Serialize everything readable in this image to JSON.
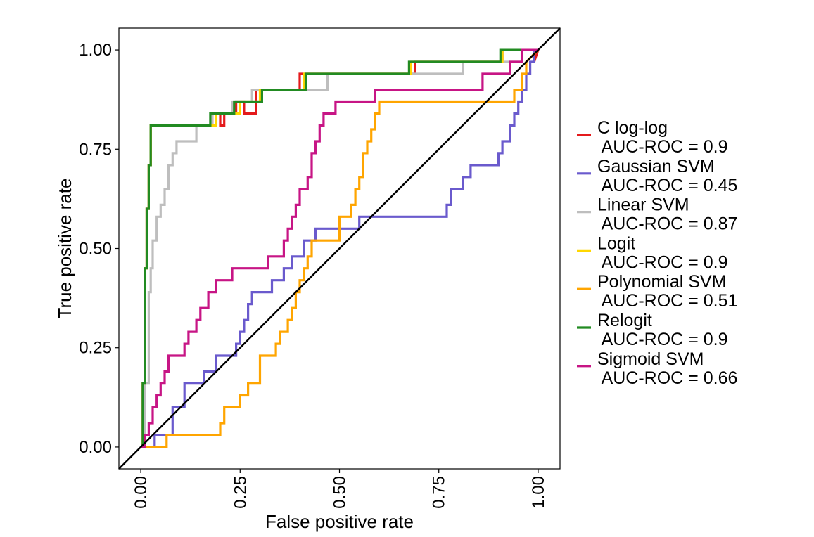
{
  "chart_data": {
    "type": "line",
    "xlabel": "False positive rate",
    "ylabel": "True positive rate",
    "xlim": [
      -0.055,
      1.055
    ],
    "ylim": [
      -0.055,
      1.055
    ],
    "x_ticks": [
      0,
      0.25,
      0.5,
      0.75,
      1
    ],
    "x_tick_labels": [
      "0.00",
      "0.25",
      "0.50",
      "0.75",
      "1.00"
    ],
    "y_ticks": [
      0,
      0.25,
      0.5,
      0.75,
      1
    ],
    "y_tick_labels": [
      "0.00",
      "0.25",
      "0.50",
      "0.75",
      "1.00"
    ],
    "x_tick_label_rotation": "vertical",
    "grid": false,
    "legend_position": "right",
    "reference_line": {
      "x": [
        -0.055,
        1.055
      ],
      "y": [
        -0.055,
        1.055
      ],
      "color": "#000000"
    },
    "series": [
      {
        "name": "C log-log",
        "auc_label": " AUC-ROC = 0.9",
        "color": "#E41A1C",
        "x": [
          0,
          0.005,
          0.005,
          0.01,
          0.01,
          0.015,
          0.015,
          0.02,
          0.02,
          0.025,
          0.025,
          0.18,
          0.18,
          0.2,
          0.2,
          0.21,
          0.21,
          0.24,
          0.24,
          0.26,
          0.26,
          0.29,
          0.29,
          0.4,
          0.4,
          0.69,
          0.69,
          0.91,
          0.91,
          0.99,
          0.99,
          1.0
        ],
        "y": [
          0,
          0,
          0.16,
          0.16,
          0.45,
          0.45,
          0.6,
          0.6,
          0.71,
          0.71,
          0.81,
          0.81,
          0.84,
          0.84,
          0.81,
          0.81,
          0.84,
          0.84,
          0.87,
          0.87,
          0.84,
          0.84,
          0.9,
          0.9,
          0.94,
          0.94,
          0.97,
          0.97,
          1.0,
          1.0,
          0.97,
          1.0
        ]
      },
      {
        "name": "Gaussian SVM",
        "auc_label": " AUC-ROC = 0.45",
        "color": "#6A5ACD",
        "x": [
          0,
          0.035,
          0.035,
          0.08,
          0.08,
          0.11,
          0.11,
          0.16,
          0.16,
          0.19,
          0.19,
          0.24,
          0.24,
          0.25,
          0.25,
          0.26,
          0.26,
          0.27,
          0.27,
          0.28,
          0.28,
          0.33,
          0.33,
          0.36,
          0.36,
          0.38,
          0.38,
          0.41,
          0.41,
          0.44,
          0.44,
          0.48,
          0.48,
          0.55,
          0.55,
          0.77,
          0.77,
          0.78,
          0.78,
          0.8,
          0.8,
          0.81,
          0.81,
          0.83,
          0.83,
          0.9,
          0.9,
          0.91,
          0.91,
          0.93,
          0.93,
          0.94,
          0.94,
          0.95,
          0.95,
          0.96,
          0.96,
          0.97,
          0.97,
          0.98,
          0.98,
          0.99,
          0.99,
          1.0
        ],
        "y": [
          0,
          0,
          0.03,
          0.03,
          0.1,
          0.1,
          0.16,
          0.16,
          0.19,
          0.19,
          0.23,
          0.23,
          0.26,
          0.26,
          0.29,
          0.29,
          0.32,
          0.32,
          0.36,
          0.36,
          0.39,
          0.39,
          0.42,
          0.42,
          0.45,
          0.45,
          0.48,
          0.48,
          0.52,
          0.52,
          0.55,
          0.55,
          0.55,
          0.55,
          0.58,
          0.58,
          0.61,
          0.61,
          0.65,
          0.65,
          0.65,
          0.65,
          0.68,
          0.68,
          0.71,
          0.71,
          0.74,
          0.74,
          0.77,
          0.77,
          0.81,
          0.81,
          0.84,
          0.84,
          0.87,
          0.87,
          0.9,
          0.9,
          0.94,
          0.94,
          0.97,
          0.97,
          1.0,
          1.0
        ]
      },
      {
        "name": "Linear SVM",
        "auc_label": " AUC-ROC = 0.87",
        "color": "#BEBEBE",
        "x": [
          0,
          0.01,
          0.01,
          0.02,
          0.02,
          0.025,
          0.025,
          0.03,
          0.03,
          0.04,
          0.04,
          0.05,
          0.05,
          0.06,
          0.06,
          0.07,
          0.07,
          0.08,
          0.08,
          0.09,
          0.09,
          0.11,
          0.11,
          0.14,
          0.14,
          0.18,
          0.18,
          0.19,
          0.19,
          0.23,
          0.23,
          0.28,
          0.28,
          0.35,
          0.35,
          0.47,
          0.47,
          0.81,
          0.81,
          0.96,
          0.96,
          1.0
        ],
        "y": [
          0,
          0,
          0.16,
          0.16,
          0.39,
          0.39,
          0.45,
          0.45,
          0.52,
          0.52,
          0.58,
          0.58,
          0.61,
          0.61,
          0.65,
          0.65,
          0.71,
          0.71,
          0.74,
          0.74,
          0.77,
          0.77,
          0.77,
          0.77,
          0.81,
          0.81,
          0.84,
          0.84,
          0.84,
          0.84,
          0.87,
          0.87,
          0.9,
          0.9,
          0.9,
          0.9,
          0.94,
          0.94,
          0.97,
          0.97,
          1.0,
          1.0
        ]
      },
      {
        "name": "Logit",
        "auc_label": " AUC-ROC = 0.9",
        "color": "#FFD700",
        "x": [
          0,
          0.005,
          0.005,
          0.01,
          0.01,
          0.015,
          0.015,
          0.02,
          0.02,
          0.025,
          0.025,
          0.18,
          0.18,
          0.19,
          0.19,
          0.24,
          0.24,
          0.25,
          0.25,
          0.3,
          0.3,
          0.41,
          0.41,
          0.68,
          0.68,
          0.91,
          0.91,
          1.0
        ],
        "y": [
          0,
          0,
          0.16,
          0.16,
          0.45,
          0.45,
          0.6,
          0.6,
          0.71,
          0.71,
          0.81,
          0.81,
          0.81,
          0.81,
          0.84,
          0.84,
          0.84,
          0.84,
          0.87,
          0.87,
          0.9,
          0.9,
          0.94,
          0.94,
          0.97,
          0.97,
          1.0,
          1.0
        ]
      },
      {
        "name": "Polynomial SVM",
        "auc_label": " AUC-ROC = 0.51",
        "color": "#FFA500",
        "x": [
          0,
          0.065,
          0.065,
          0.2,
          0.2,
          0.21,
          0.21,
          0.24,
          0.24,
          0.25,
          0.25,
          0.27,
          0.27,
          0.28,
          0.28,
          0.3,
          0.3,
          0.34,
          0.34,
          0.35,
          0.35,
          0.37,
          0.37,
          0.38,
          0.38,
          0.39,
          0.39,
          0.4,
          0.4,
          0.41,
          0.41,
          0.42,
          0.42,
          0.43,
          0.43,
          0.5,
          0.5,
          0.5,
          0.5,
          0.53,
          0.53,
          0.54,
          0.54,
          0.55,
          0.55,
          0.56,
          0.56,
          0.57,
          0.57,
          0.58,
          0.58,
          0.59,
          0.59,
          0.6,
          0.6,
          0.76,
          0.76,
          0.94,
          0.94,
          0.96,
          0.96,
          0.97,
          0.97,
          1.0
        ],
        "y": [
          0,
          0,
          0.03,
          0.03,
          0.06,
          0.06,
          0.1,
          0.1,
          0.1,
          0.1,
          0.13,
          0.13,
          0.16,
          0.16,
          0.16,
          0.16,
          0.23,
          0.23,
          0.26,
          0.26,
          0.29,
          0.29,
          0.32,
          0.32,
          0.35,
          0.35,
          0.39,
          0.39,
          0.42,
          0.42,
          0.45,
          0.45,
          0.48,
          0.48,
          0.52,
          0.52,
          0.55,
          0.55,
          0.58,
          0.58,
          0.61,
          0.61,
          0.65,
          0.65,
          0.68,
          0.68,
          0.74,
          0.74,
          0.77,
          0.77,
          0.8,
          0.8,
          0.84,
          0.84,
          0.87,
          0.87,
          0.87,
          0.87,
          0.9,
          0.9,
          0.94,
          0.94,
          0.97,
          1.0
        ]
      },
      {
        "name": "Relogit",
        "auc_label": " AUC-ROC = 0.9",
        "color": "#228B22",
        "x": [
          0,
          0.005,
          0.005,
          0.01,
          0.01,
          0.015,
          0.015,
          0.02,
          0.02,
          0.025,
          0.025,
          0.175,
          0.175,
          0.235,
          0.235,
          0.305,
          0.305,
          0.415,
          0.415,
          0.675,
          0.675,
          0.905,
          0.905,
          1.0
        ],
        "y": [
          0,
          0,
          0.16,
          0.16,
          0.45,
          0.45,
          0.6,
          0.6,
          0.71,
          0.71,
          0.81,
          0.81,
          0.84,
          0.84,
          0.87,
          0.87,
          0.9,
          0.9,
          0.94,
          0.94,
          0.97,
          0.97,
          1.0,
          1.0
        ]
      },
      {
        "name": "Sigmoid SVM",
        "auc_label": " AUC-ROC = 0.66",
        "color": "#C71585",
        "x": [
          0,
          0.01,
          0.01,
          0.02,
          0.02,
          0.03,
          0.03,
          0.04,
          0.04,
          0.05,
          0.05,
          0.06,
          0.06,
          0.07,
          0.07,
          0.11,
          0.11,
          0.12,
          0.12,
          0.14,
          0.14,
          0.15,
          0.15,
          0.16,
          0.16,
          0.17,
          0.17,
          0.19,
          0.19,
          0.23,
          0.23,
          0.32,
          0.32,
          0.36,
          0.36,
          0.37,
          0.37,
          0.38,
          0.38,
          0.39,
          0.39,
          0.4,
          0.4,
          0.42,
          0.42,
          0.43,
          0.43,
          0.44,
          0.44,
          0.45,
          0.45,
          0.46,
          0.46,
          0.49,
          0.49,
          0.59,
          0.59,
          0.86,
          0.86,
          0.93,
          0.93,
          0.96,
          0.96,
          1.0
        ],
        "y": [
          0,
          0,
          0.03,
          0.03,
          0.06,
          0.06,
          0.1,
          0.1,
          0.13,
          0.13,
          0.16,
          0.16,
          0.19,
          0.19,
          0.23,
          0.23,
          0.26,
          0.26,
          0.29,
          0.29,
          0.32,
          0.32,
          0.35,
          0.35,
          0.35,
          0.35,
          0.39,
          0.39,
          0.42,
          0.42,
          0.45,
          0.45,
          0.48,
          0.48,
          0.52,
          0.52,
          0.55,
          0.55,
          0.58,
          0.58,
          0.61,
          0.61,
          0.65,
          0.65,
          0.68,
          0.68,
          0.74,
          0.74,
          0.77,
          0.77,
          0.81,
          0.81,
          0.84,
          0.84,
          0.87,
          0.87,
          0.9,
          0.9,
          0.94,
          0.94,
          0.97,
          0.97,
          1.0,
          1.0
        ]
      }
    ]
  }
}
